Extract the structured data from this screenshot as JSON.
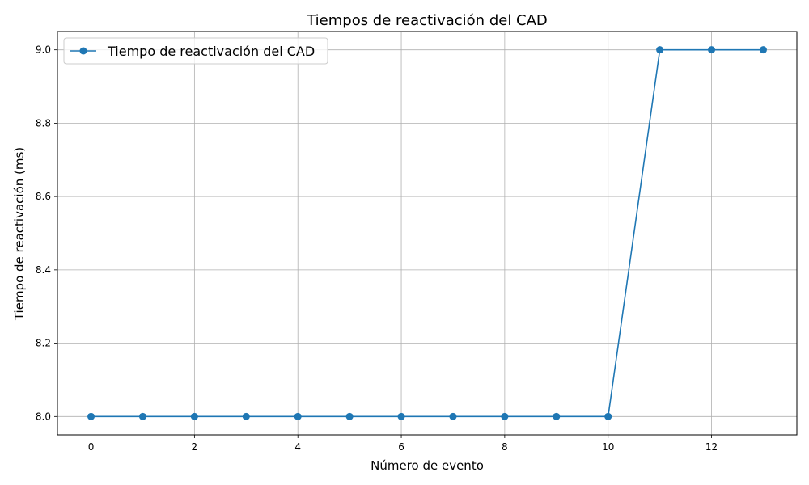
{
  "chart_data": {
    "type": "line",
    "title": "Tiempos de reactivación del CAD",
    "xlabel": "Número de evento",
    "ylabel": "Tiempo de reactivación (ms)",
    "xlim": [
      -0.65,
      13.65
    ],
    "ylim": [
      7.95,
      9.05
    ],
    "xticks": [
      0,
      2,
      4,
      6,
      8,
      10,
      12
    ],
    "yticks": [
      8.0,
      8.2,
      8.4,
      8.6,
      8.8,
      9.0
    ],
    "xtick_labels": [
      "0",
      "2",
      "4",
      "6",
      "8",
      "10",
      "12"
    ],
    "ytick_labels": [
      "8.0",
      "8.2",
      "8.4",
      "8.6",
      "8.8",
      "9.0"
    ],
    "grid": true,
    "legend_position": "top-left",
    "series": [
      {
        "name": "Tiempo de reactivación del CAD",
        "color": "#1f77b4",
        "marker": "circle",
        "x": [
          0,
          1,
          2,
          3,
          4,
          5,
          6,
          7,
          8,
          9,
          10,
          11,
          12,
          13
        ],
        "y": [
          8,
          8,
          8,
          8,
          8,
          8,
          8,
          8,
          8,
          8,
          8,
          9,
          9,
          9
        ]
      }
    ]
  }
}
